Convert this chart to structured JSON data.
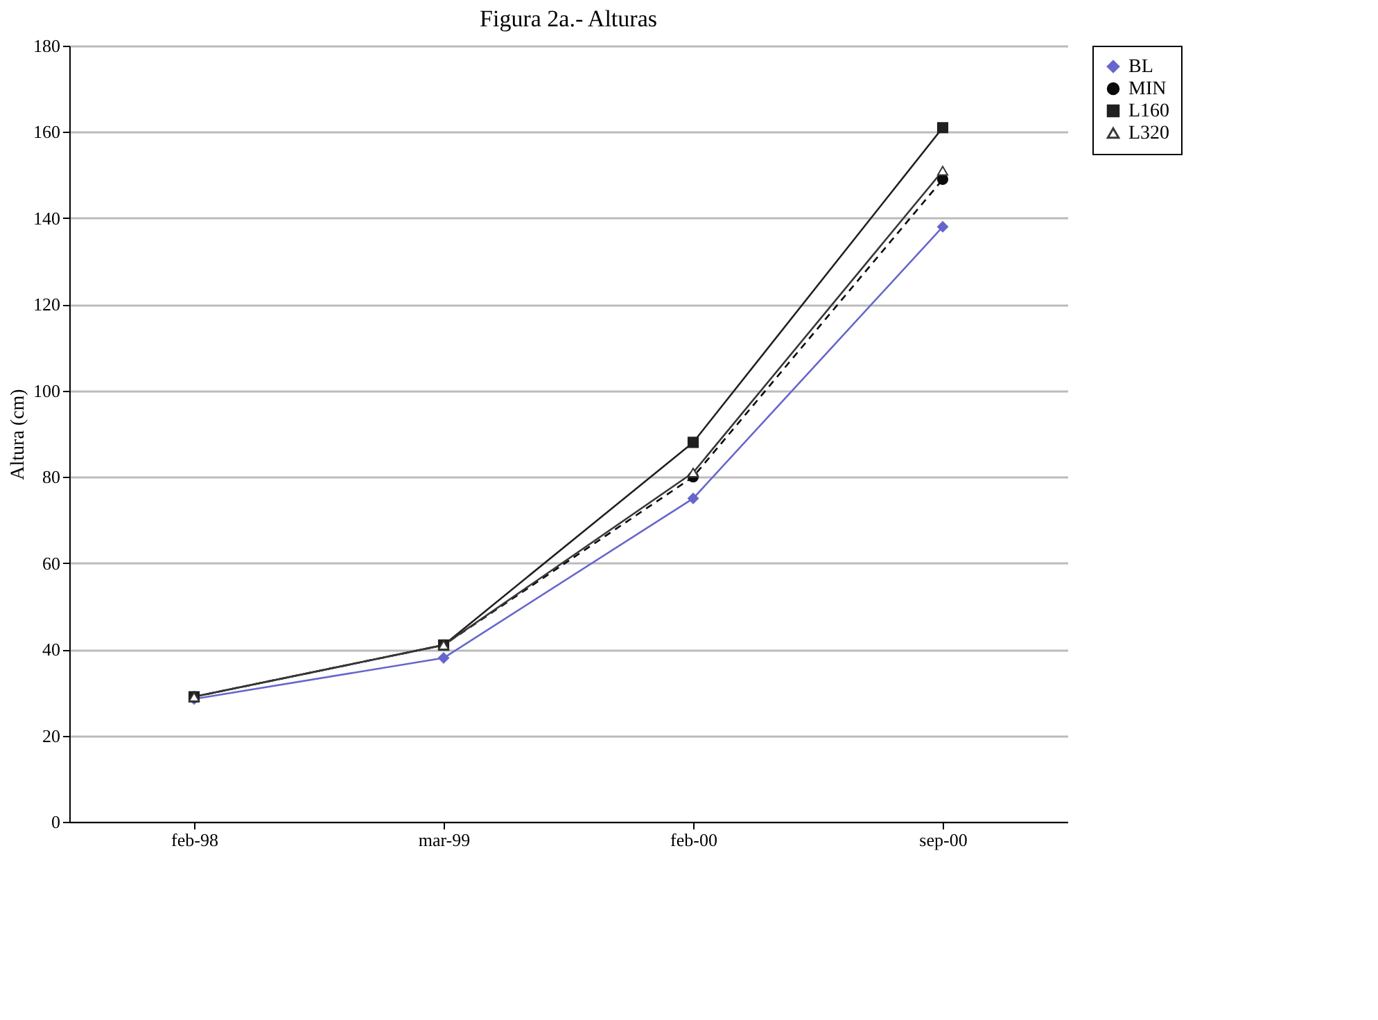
{
  "chart_data": {
    "type": "line",
    "title": "Figura 2a.- Alturas",
    "ylabel": "Altura (cm)",
    "categories": [
      "feb-98",
      "mar-99",
      "feb-00",
      "sep-00"
    ],
    "series": [
      {
        "name": "BL",
        "color": "#6666cc",
        "marker": "diamond",
        "line_style": "solid",
        "values": [
          28.5,
          38,
          75,
          138
        ]
      },
      {
        "name": "MIN",
        "color": "#0a0a0a",
        "marker": "circle",
        "line_style": "dashed",
        "values": [
          29,
          41,
          80,
          149
        ]
      },
      {
        "name": "L160",
        "color": "#202020",
        "marker": "square",
        "line_style": "solid",
        "values": [
          29,
          41,
          88,
          161
        ]
      },
      {
        "name": "L320",
        "color": "#383838",
        "marker": "triangle",
        "line_style": "solid",
        "values": [
          29,
          41,
          81,
          151
        ]
      }
    ],
    "ylim": [
      0,
      180
    ],
    "yticks": [
      0,
      20,
      40,
      60,
      80,
      100,
      120,
      140,
      160,
      180
    ],
    "grid": "y",
    "legend": "right"
  }
}
